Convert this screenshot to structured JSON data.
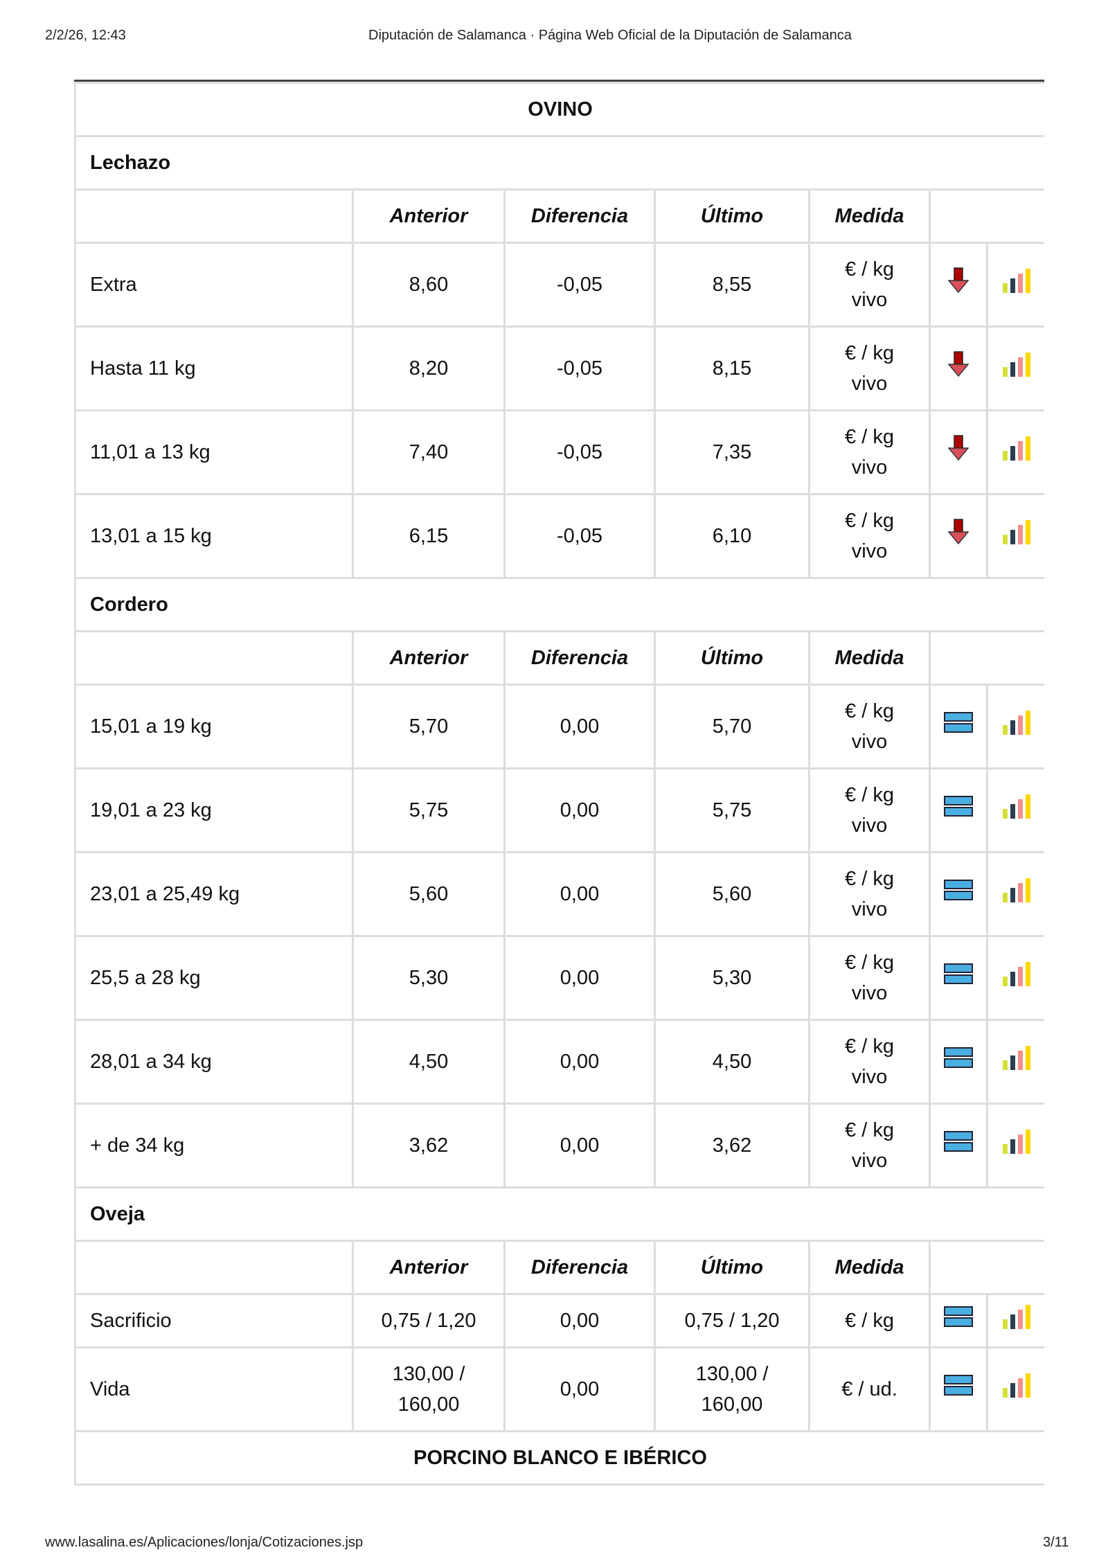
{
  "browser_header": {
    "datetime": "2/2/26, 12:43",
    "title": "Diputación de Salamanca · Página Web Oficial de la Diputación de Salamanca"
  },
  "browser_footer": {
    "url": "www.lasalina.es/Aplicaciones/lonja/Cotizaciones.jsp",
    "page": "3/11"
  },
  "columns": [
    "",
    "Anterior",
    "Diferencia",
    "Último",
    "Medida"
  ],
  "group_title": "OVINO",
  "sections": [
    {
      "title": "Lechazo",
      "rows": [
        {
          "name": "Extra",
          "anterior": "8,60",
          "diferencia": "-0,05",
          "ultimo": "8,55",
          "medida": [
            "€ / kg",
            "vivo"
          ],
          "trend": "down"
        },
        {
          "name": "Hasta 11 kg",
          "anterior": "8,20",
          "diferencia": "-0,05",
          "ultimo": "8,15",
          "medida": [
            "€ / kg",
            "vivo"
          ],
          "trend": "down"
        },
        {
          "name": "11,01 a 13 kg",
          "anterior": "7,40",
          "diferencia": "-0,05",
          "ultimo": "7,35",
          "medida": [
            "€ / kg",
            "vivo"
          ],
          "trend": "down"
        },
        {
          "name": "13,01 a 15 kg",
          "anterior": "6,15",
          "diferencia": "-0,05",
          "ultimo": "6,10",
          "medida": [
            "€ / kg",
            "vivo"
          ],
          "trend": "down"
        }
      ]
    },
    {
      "title": "Cordero",
      "rows": [
        {
          "name": "15,01 a 19 kg",
          "anterior": "5,70",
          "diferencia": "0,00",
          "ultimo": "5,70",
          "medida": [
            "€ / kg",
            "vivo"
          ],
          "trend": "equal"
        },
        {
          "name": "19,01 a 23 kg",
          "anterior": "5,75",
          "diferencia": "0,00",
          "ultimo": "5,75",
          "medida": [
            "€ / kg",
            "vivo"
          ],
          "trend": "equal"
        },
        {
          "name": "23,01 a 25,49 kg",
          "anterior": "5,60",
          "diferencia": "0,00",
          "ultimo": "5,60",
          "medida": [
            "€ / kg",
            "vivo"
          ],
          "trend": "equal"
        },
        {
          "name": "25,5 a 28 kg",
          "anterior": "5,30",
          "diferencia": "0,00",
          "ultimo": "5,30",
          "medida": [
            "€ / kg",
            "vivo"
          ],
          "trend": "equal"
        },
        {
          "name": "28,01 a 34 kg",
          "anterior": "4,50",
          "diferencia": "0,00",
          "ultimo": "4,50",
          "medida": [
            "€ / kg",
            "vivo"
          ],
          "trend": "equal"
        },
        {
          "name": "+ de 34 kg",
          "anterior": "3,62",
          "diferencia": "0,00",
          "ultimo": "3,62",
          "medida": [
            "€ / kg",
            "vivo"
          ],
          "trend": "equal"
        }
      ]
    },
    {
      "title": "Oveja",
      "rows": [
        {
          "name": "Sacrificio",
          "anterior": "0,75 / 1,20",
          "diferencia": "0,00",
          "ultimo": "0,75 / 1,20",
          "medida": [
            "€ / kg"
          ],
          "trend": "equal",
          "short": true
        },
        {
          "name": "Vida",
          "anterior": "130,00 / 160,00",
          "diferencia": "0,00",
          "ultimo": "130,00 / 160,00",
          "medida": [
            "€ / ud."
          ],
          "trend": "equal"
        }
      ]
    }
  ],
  "next_group_title": "PORCINO BLANCO E IBÉRICO",
  "colors": {
    "arrow_down": "#b00000",
    "equal": "#4aaee0",
    "bars": [
      "#d4e03a",
      "#2c3e50",
      "#f4908a",
      "#ffd700"
    ]
  }
}
